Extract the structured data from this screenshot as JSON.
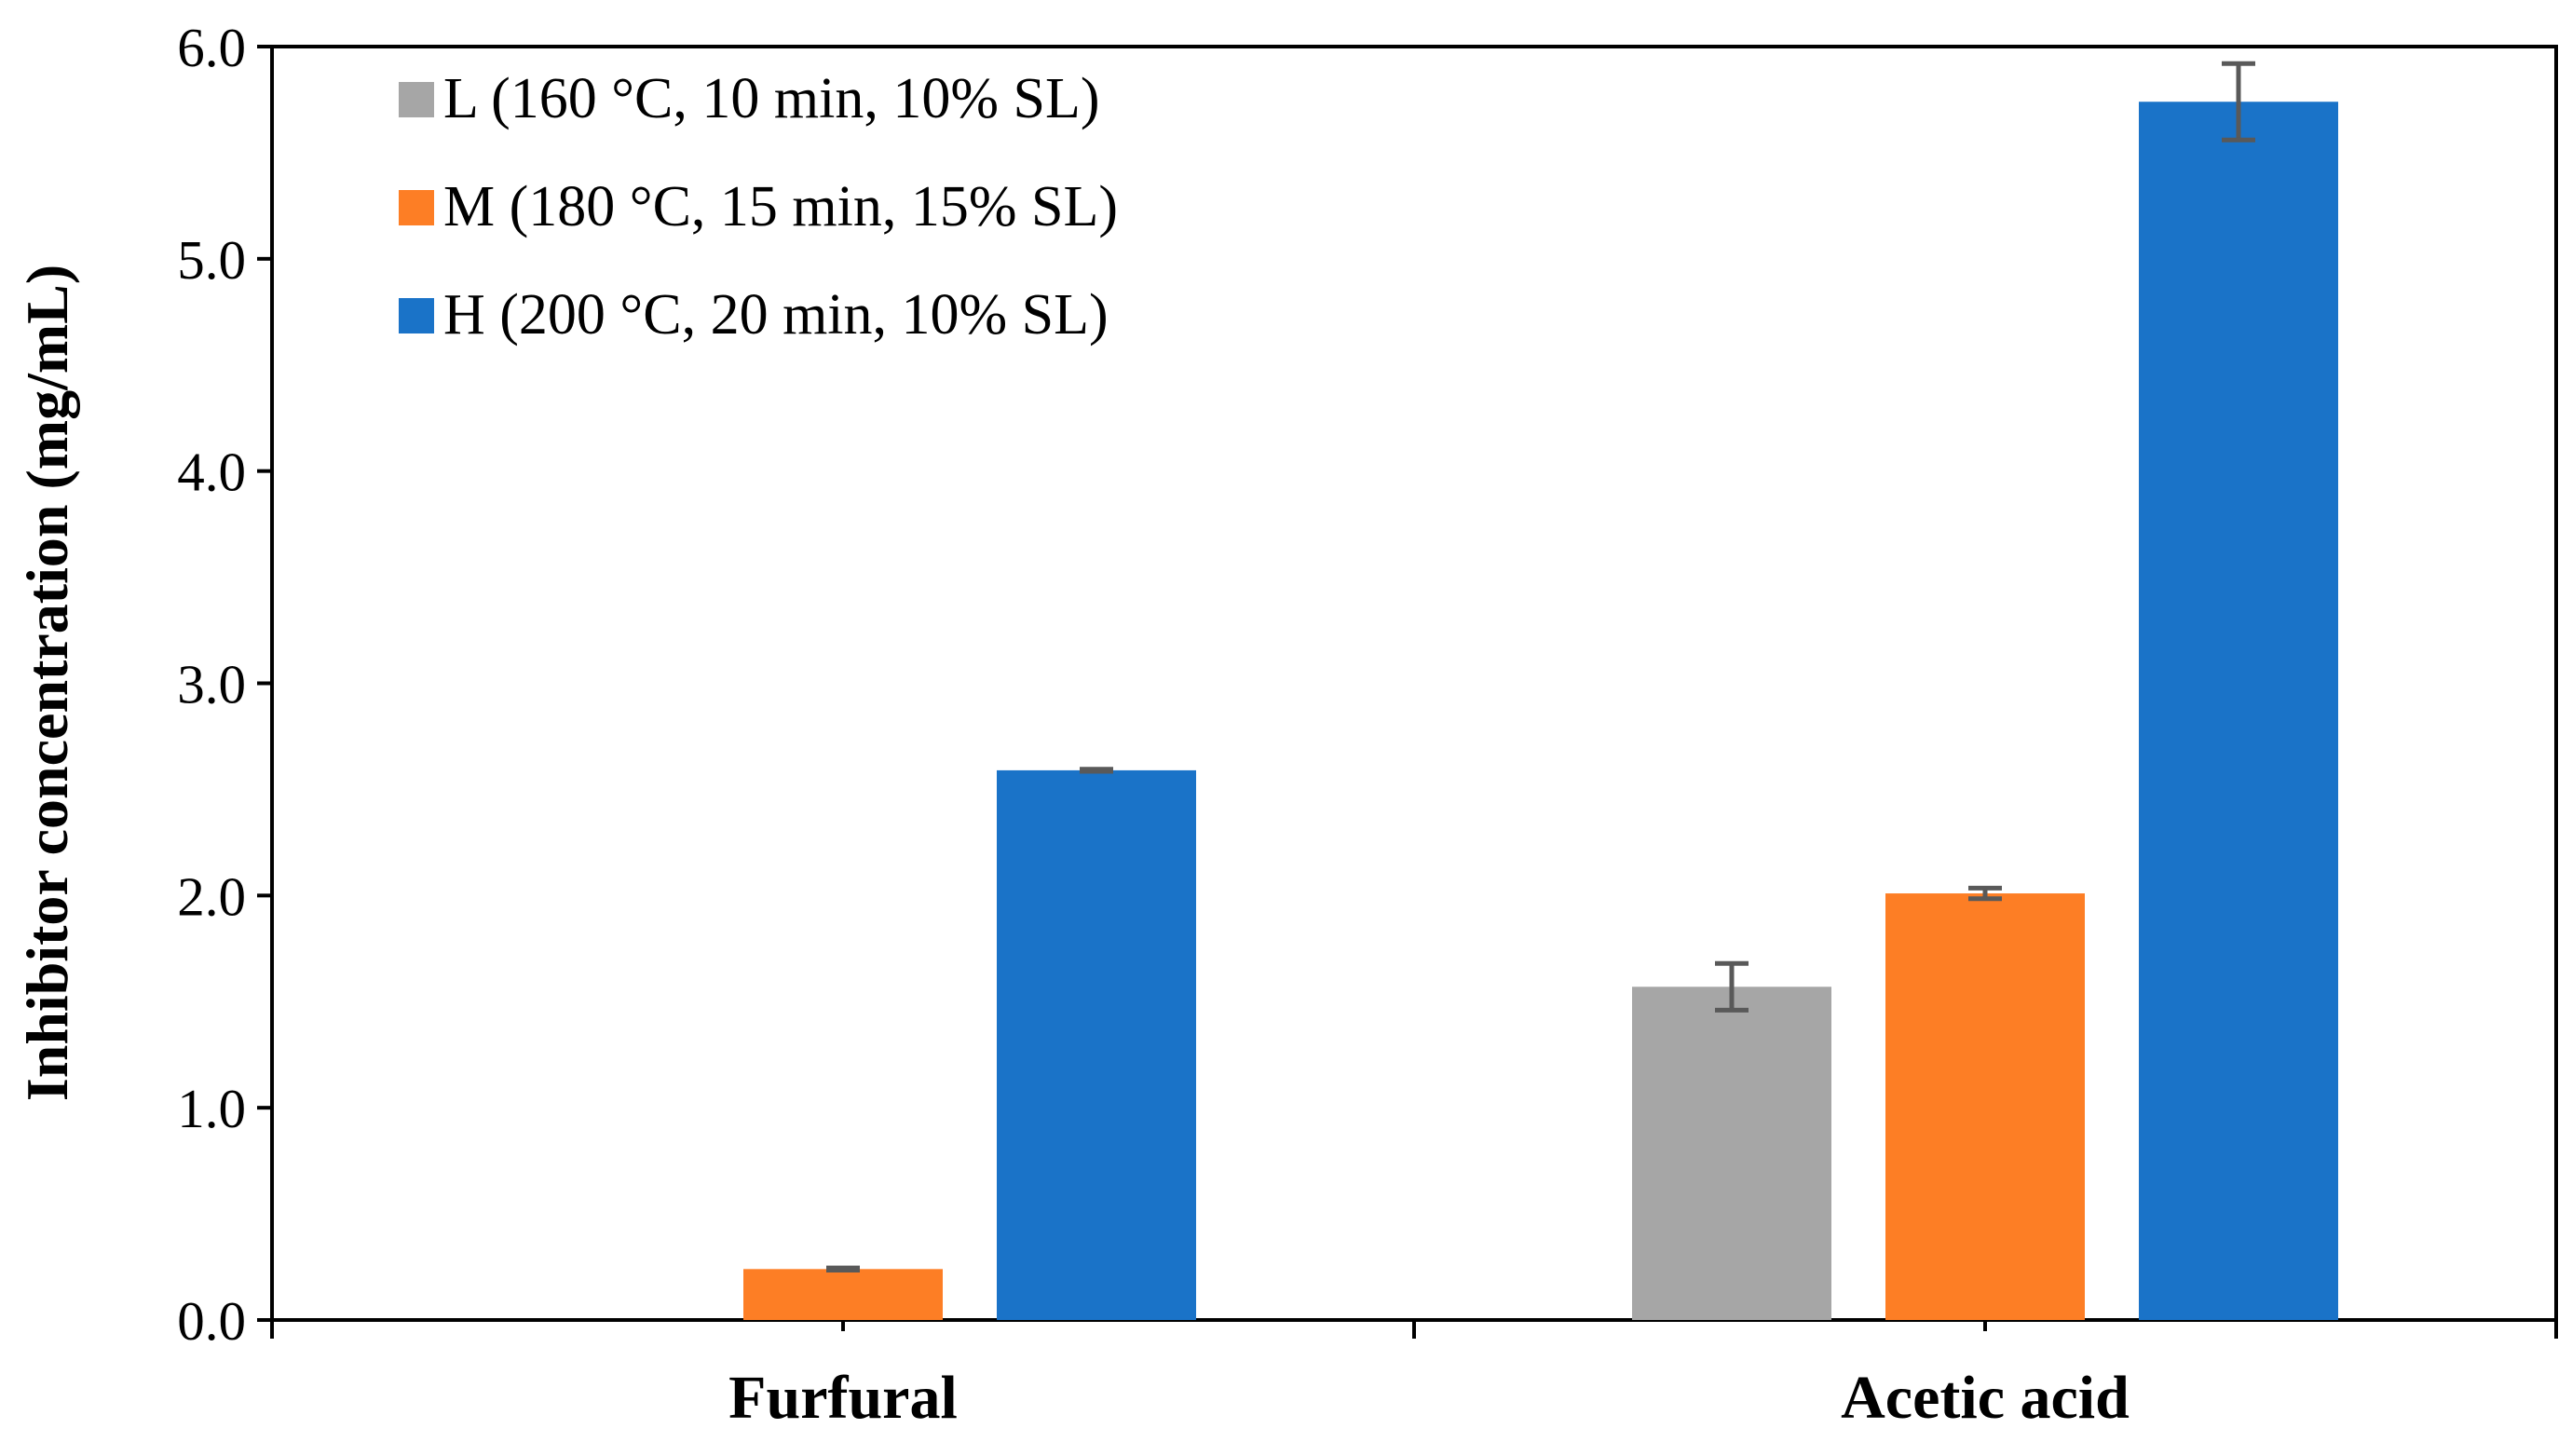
{
  "chart_data": {
    "type": "bar",
    "title": "",
    "xlabel": "",
    "ylabel": "Inhibitor concentration (mg/mL)",
    "ylim": [
      0,
      6
    ],
    "yticks": [
      0,
      1,
      2,
      3,
      4,
      5,
      6
    ],
    "ytick_labels": [
      "0.0",
      "1.0",
      "2.0",
      "3.0",
      "4.0",
      "5.0",
      "6.0"
    ],
    "categories": [
      "Furfural",
      "Acetic acid"
    ],
    "series": [
      {
        "name": "L (160 °C, 10 min, 10% SL)",
        "color": "#a6a6a6",
        "values": [
          0.0,
          1.57
        ],
        "errors": [
          0.0,
          0.11
        ]
      },
      {
        "name": "M (180 °C, 15 min, 15% SL)",
        "color": "#fd7e25",
        "values": [
          0.24,
          2.01
        ],
        "errors": [
          0.005,
          0.025
        ]
      },
      {
        "name": "H (200 °C, 20 min, 10% SL)",
        "color": "#1a73c8",
        "values": [
          2.59,
          5.74
        ],
        "errors": [
          0.005,
          0.18
        ]
      }
    ],
    "legend_position": "top-left",
    "grid": false
  }
}
